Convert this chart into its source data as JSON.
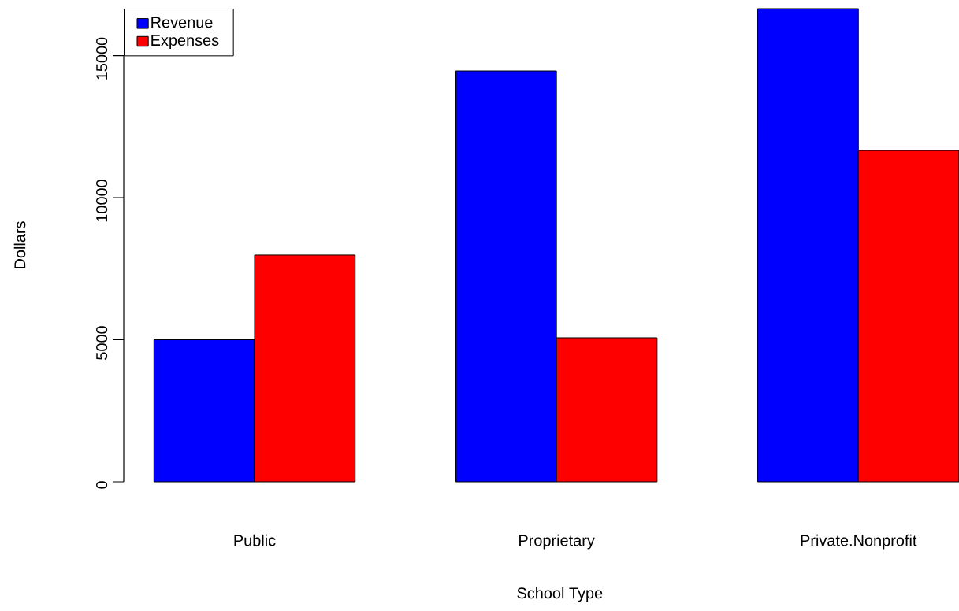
{
  "chart_data": {
    "type": "bar",
    "xlabel": "School Type",
    "ylabel": "Dollars",
    "categories": [
      "Public",
      "Proprietary",
      "Private.Nonprofit"
    ],
    "series": [
      {
        "name": "Revenue",
        "color": "#0000ff",
        "values": [
          5000,
          14460,
          16650
        ]
      },
      {
        "name": "Expenses",
        "color": "#ff0000",
        "values": [
          7980,
          5070,
          11660
        ]
      }
    ],
    "ylim": [
      0,
      16650
    ],
    "yticks": [
      0,
      5000,
      10000,
      15000
    ],
    "legend": "top left",
    "grid": false
  }
}
